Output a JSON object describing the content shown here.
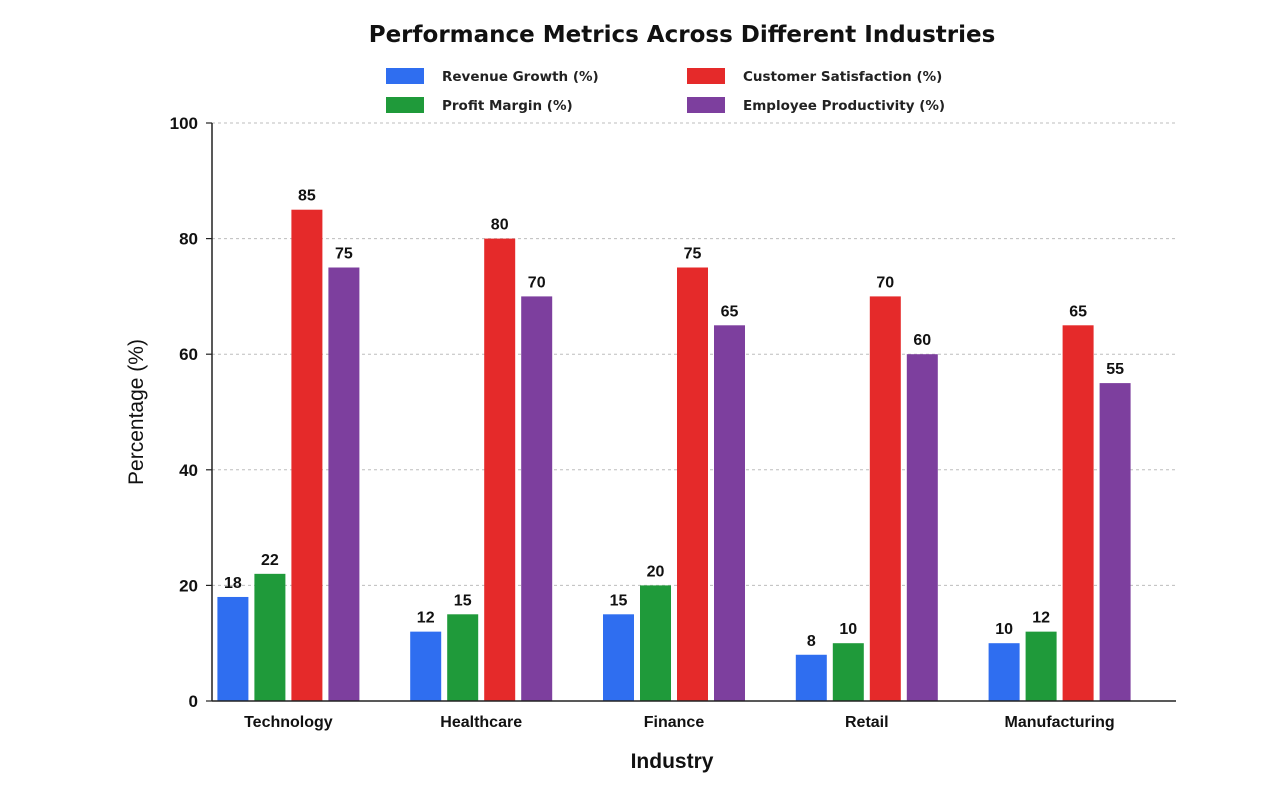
{
  "chart_data": {
    "type": "bar",
    "title": "Performance Metrics Across Different Industries",
    "xlabel": "Industry",
    "ylabel": "Percentage (%)",
    "ylim": [
      0,
      100
    ],
    "yticks": [
      0,
      20,
      40,
      60,
      80,
      100
    ],
    "grid": true,
    "legend_position": "top",
    "categories": [
      "Technology",
      "Healthcare",
      "Finance",
      "Retail",
      "Manufacturing"
    ],
    "series": [
      {
        "name": "Revenue  Growth (%)",
        "color": "#2f6ef0",
        "values": [
          18,
          12,
          15,
          8,
          10
        ]
      },
      {
        "name": "Profit Margin (%)",
        "color": "#1f9a3a",
        "values": [
          22,
          15,
          20,
          10,
          12
        ]
      },
      {
        "name": "Customer Satisfaction (%)",
        "color": "#e52a2a",
        "values": [
          85,
          80,
          75,
          70,
          65
        ]
      },
      {
        "name": "Employee Productivity (%)",
        "color": "#7d3f9e",
        "values": [
          75,
          70,
          65,
          60,
          55
        ]
      }
    ]
  }
}
